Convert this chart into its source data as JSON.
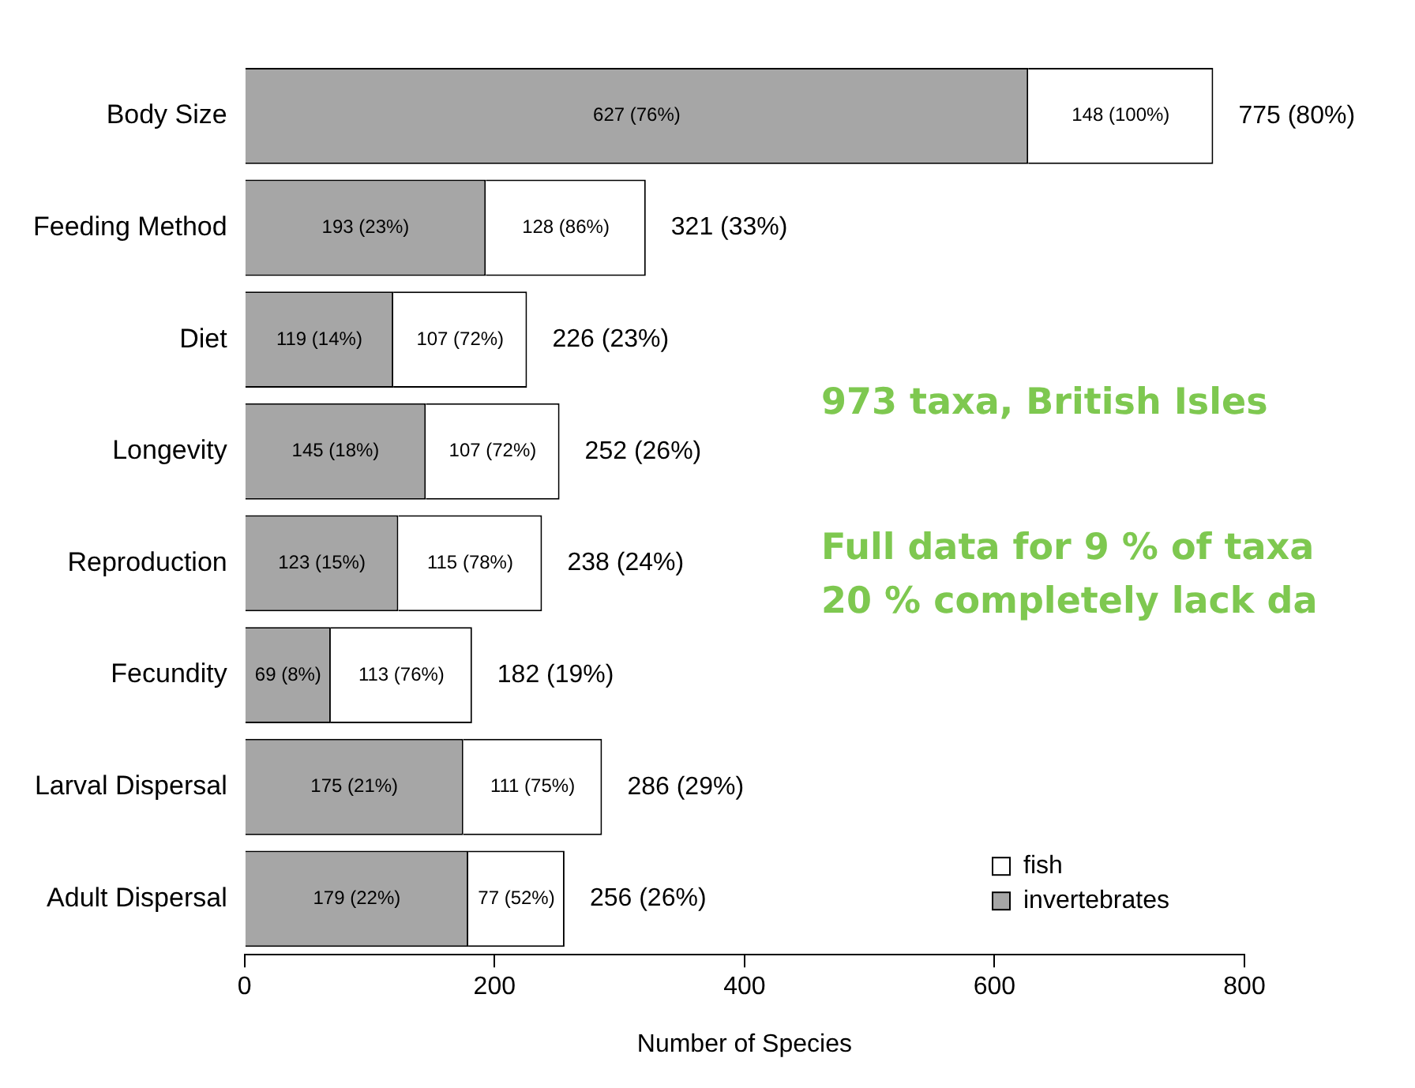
{
  "chart_data": {
    "type": "bar",
    "orientation": "horizontal",
    "stacked": true,
    "categories": [
      "Body Size",
      "Feeding Method",
      "Diet",
      "Longevity",
      "Reproduction",
      "Fecundity",
      "Larval Dispersal",
      "Adult Dispersal"
    ],
    "series": [
      {
        "name": "invertebrates",
        "color": "#a6a6a6",
        "values": [
          627,
          193,
          119,
          145,
          123,
          69,
          175,
          179
        ],
        "value_labels": [
          "627 (76%)",
          "193 (23%)",
          "119 (14%)",
          "145 (18%)",
          "123 (15%)",
          "69 (8%)",
          "175 (21%)",
          "179 (22%)"
        ]
      },
      {
        "name": "fish",
        "color": "#ffffff",
        "values": [
          148,
          128,
          107,
          107,
          115,
          113,
          111,
          77
        ],
        "value_labels": [
          "148 (100%)",
          "128 (86%)",
          "107 (72%)",
          "107 (72%)",
          "115 (78%)",
          "113 (76%)",
          "111 (75%)",
          "77 (52%)"
        ]
      }
    ],
    "totals": [
      "775 (80%)",
      "321 (33%)",
      "226 (23%)",
      "252 (26%)",
      "238 (24%)",
      "182 (19%)",
      "286 (29%)",
      "256 (26%)"
    ],
    "xlim": [
      0,
      800
    ],
    "xticks": [
      0,
      200,
      400,
      600,
      800
    ],
    "xlabel": "Number of Species",
    "grid": false,
    "legend": "bottom right",
    "annotations": [
      "973 taxa, British Isles",
      "Full data for 9 % of taxa",
      "20 % completely lack da"
    ]
  }
}
